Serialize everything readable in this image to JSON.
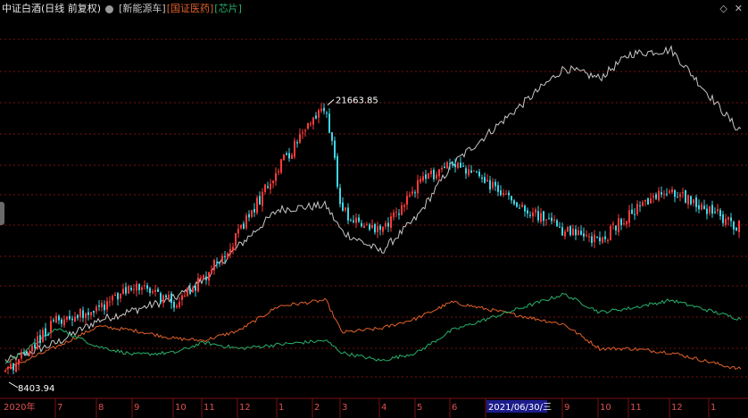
{
  "header": {
    "title": "中证白酒(日线 前复权)",
    "series_labels": [
      {
        "label": "[新能源车]",
        "color": "#c8c8c8"
      },
      {
        "label": "[国证医药]",
        "color": "#e0602a"
      },
      {
        "label": "[芯片]",
        "color": "#27b06a"
      }
    ],
    "icons": [
      "diamond-icon",
      "close-icon"
    ]
  },
  "colors": {
    "background": "#000000",
    "grid": "#7a1010",
    "candle_up": "#ff3b3b",
    "candle_down": "#3fd6e6",
    "nev_line": "#c8c8c8",
    "pharma_line": "#e0602a",
    "chip_line": "#27b06a",
    "axis_text": "#e05050",
    "highlight_bg": "#1c1c8c"
  },
  "chart_data": {
    "type": "line",
    "title": "中证白酒(日线 前复权)",
    "annotations": {
      "max_label": "21663.85",
      "min_label": "8403.94"
    },
    "x_axis_labels": [
      "2020年",
      "7",
      "8",
      "9",
      "10",
      "11",
      "12",
      "1",
      "2",
      "3",
      "4",
      "5",
      "6",
      "2021/06/30/三",
      "9",
      "10",
      "11",
      "12",
      "1"
    ],
    "highlighted_x_label": "2021/06/30/三",
    "series": [
      {
        "name": "中证白酒",
        "kind": "candlestick",
        "x": [
          "2020年",
          "7",
          "8",
          "9",
          "10",
          "11",
          "12",
          "1",
          "2",
          "3",
          "4",
          "5",
          "6",
          "9",
          "10",
          "11",
          "12",
          "1"
        ],
        "values": [
          8404,
          10900,
          11500,
          12600,
          11800,
          13000,
          15200,
          18500,
          21663.85,
          16300,
          15200,
          17600,
          18800,
          15300,
          14800,
          16200,
          17400,
          15600
        ]
      },
      {
        "name": "新能源车",
        "kind": "line",
        "x": [
          "2020年",
          "7",
          "8",
          "9",
          "10",
          "11",
          "12",
          "1",
          "2",
          "3",
          "4",
          "5",
          "6",
          "9",
          "10",
          "11",
          "12",
          "1"
        ],
        "values": [
          8900,
          9800,
          10900,
          11400,
          12000,
          12900,
          14600,
          16400,
          16600,
          15300,
          14300,
          16000,
          18600,
          23400,
          22900,
          24100,
          24300,
          20400
        ]
      },
      {
        "name": "国证医药",
        "kind": "line",
        "x": [
          "2020年",
          "7",
          "8",
          "9",
          "10",
          "11",
          "12",
          "1",
          "2",
          "3",
          "4",
          "5",
          "6",
          "9",
          "10",
          "11",
          "12",
          "1"
        ],
        "values": [
          8500,
          9600,
          10600,
          10400,
          10000,
          9900,
          10400,
          11600,
          11900,
          10300,
          10500,
          11000,
          11800,
          10700,
          9500,
          9500,
          9300,
          8500
        ]
      },
      {
        "name": "芯片",
        "kind": "line",
        "x": [
          "2020年",
          "7",
          "8",
          "9",
          "10",
          "11",
          "12",
          "1",
          "2",
          "3",
          "4",
          "5",
          "6",
          "9",
          "10",
          "11",
          "12",
          "1"
        ],
        "values": [
          8800,
          10500,
          9600,
          9200,
          9300,
          9800,
          9500,
          9700,
          9900,
          9300,
          8900,
          9300,
          10400,
          12200,
          11300,
          11500,
          11900,
          11000
        ]
      }
    ]
  }
}
